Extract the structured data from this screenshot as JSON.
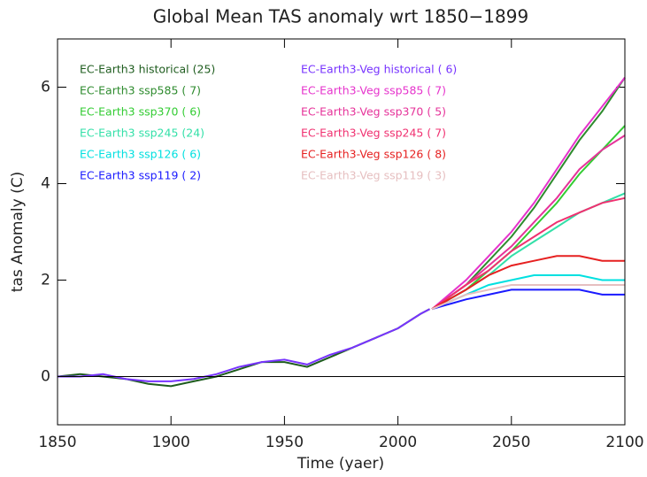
{
  "chart_data": {
    "type": "line",
    "title": "Global Mean TAS anomaly wrt 1850−1899",
    "x_label": "Time (yaer)",
    "y_label": "tas Anomaly (C)",
    "xlim": [
      1850,
      2100
    ],
    "xticks": [
      1850,
      1900,
      1950,
      2000,
      2050,
      2100
    ],
    "ylim": [
      -1,
      7
    ],
    "yticks": [
      0,
      2,
      4,
      6
    ],
    "hline": 0,
    "series": [
      {
        "name": "EC-Earth3 historical (25)",
        "color": "#1e5c1e",
        "x": [
          1850,
          1860,
          1870,
          1880,
          1890,
          1900,
          1910,
          1920,
          1930,
          1940,
          1950,
          1960,
          1970,
          1980,
          1990,
          2000,
          2010,
          2014
        ],
        "values": [
          0,
          0.05,
          0,
          -0.05,
          -0.15,
          -0.2,
          -0.1,
          0,
          0.15,
          0.3,
          0.3,
          0.2,
          0.4,
          0.6,
          0.8,
          1.0,
          1.3,
          1.4
        ]
      },
      {
        "name": "EC-Earth3 ssp585 ( 7)",
        "color": "#2e8b2e",
        "x": [
          2015,
          2030,
          2040,
          2050,
          2060,
          2070,
          2080,
          2090,
          2100
        ],
        "values": [
          1.4,
          1.9,
          2.4,
          2.9,
          3.5,
          4.2,
          4.9,
          5.5,
          6.2
        ]
      },
      {
        "name": "EC-Earth3 ssp370 ( 6)",
        "color": "#33cc33",
        "x": [
          2015,
          2030,
          2040,
          2050,
          2060,
          2070,
          2080,
          2090,
          2100
        ],
        "values": [
          1.4,
          1.8,
          2.2,
          2.6,
          3.1,
          3.6,
          4.2,
          4.7,
          5.2
        ]
      },
      {
        "name": "EC-Earth3 ssp245 (24)",
        "color": "#33e0a8",
        "x": [
          2015,
          2030,
          2040,
          2050,
          2060,
          2070,
          2080,
          2090,
          2100
        ],
        "values": [
          1.4,
          1.8,
          2.1,
          2.5,
          2.8,
          3.1,
          3.4,
          3.6,
          3.8
        ]
      },
      {
        "name": "EC-Earth3 ssp126 ( 6)",
        "color": "#00e0e0",
        "x": [
          2015,
          2030,
          2040,
          2050,
          2060,
          2070,
          2080,
          2090,
          2100
        ],
        "values": [
          1.4,
          1.7,
          1.9,
          2.0,
          2.1,
          2.1,
          2.1,
          2.0,
          2.0
        ]
      },
      {
        "name": "EC-Earth3 ssp119 ( 2)",
        "color": "#1a1aff",
        "x": [
          2015,
          2030,
          2040,
          2050,
          2060,
          2070,
          2080,
          2090,
          2100
        ],
        "values": [
          1.4,
          1.6,
          1.7,
          1.8,
          1.8,
          1.8,
          1.8,
          1.7,
          1.7
        ]
      },
      {
        "name": "EC-Earth3-Veg historical ( 6)",
        "color": "#7733ff",
        "x": [
          1850,
          1860,
          1870,
          1880,
          1890,
          1900,
          1910,
          1920,
          1930,
          1940,
          1950,
          1960,
          1970,
          1980,
          1990,
          2000,
          2010,
          2014
        ],
        "values": [
          0,
          0,
          0.05,
          -0.05,
          -0.1,
          -0.1,
          -0.05,
          0.05,
          0.2,
          0.3,
          0.35,
          0.25,
          0.45,
          0.6,
          0.8,
          1.0,
          1.3,
          1.4
        ]
      },
      {
        "name": "EC-Earth3-Veg ssp585 ( 7)",
        "color": "#e633cc",
        "x": [
          2015,
          2030,
          2040,
          2050,
          2060,
          2070,
          2080,
          2090,
          2100
        ],
        "values": [
          1.4,
          2.0,
          2.5,
          3.0,
          3.6,
          4.3,
          5.0,
          5.6,
          6.2
        ]
      },
      {
        "name": "EC-Earth3-Veg ssp370 ( 5)",
        "color": "#e6339a",
        "x": [
          2015,
          2030,
          2040,
          2050,
          2060,
          2070,
          2080,
          2090,
          2100
        ],
        "values": [
          1.4,
          1.9,
          2.3,
          2.7,
          3.2,
          3.7,
          4.3,
          4.7,
          5.0
        ]
      },
      {
        "name": "EC-Earth3-Veg ssp245 ( 7)",
        "color": "#f03070",
        "x": [
          2015,
          2030,
          2040,
          2050,
          2060,
          2070,
          2080,
          2090,
          2100
        ],
        "values": [
          1.4,
          1.9,
          2.2,
          2.6,
          2.9,
          3.2,
          3.4,
          3.6,
          3.7
        ]
      },
      {
        "name": "EC-Earth3-Veg ssp126 ( 8)",
        "color": "#e62020",
        "x": [
          2015,
          2030,
          2040,
          2050,
          2060,
          2070,
          2080,
          2090,
          2100
        ],
        "values": [
          1.4,
          1.8,
          2.1,
          2.3,
          2.4,
          2.5,
          2.5,
          2.4,
          2.4
        ]
      },
      {
        "name": "EC-Earth3-Veg ssp119 ( 3)",
        "color": "#e6bfc0",
        "x": [
          2015,
          2030,
          2040,
          2050,
          2060,
          2070,
          2080,
          2090,
          2100
        ],
        "values": [
          1.4,
          1.7,
          1.8,
          1.9,
          1.9,
          1.9,
          1.9,
          1.9,
          1.9
        ]
      }
    ]
  }
}
